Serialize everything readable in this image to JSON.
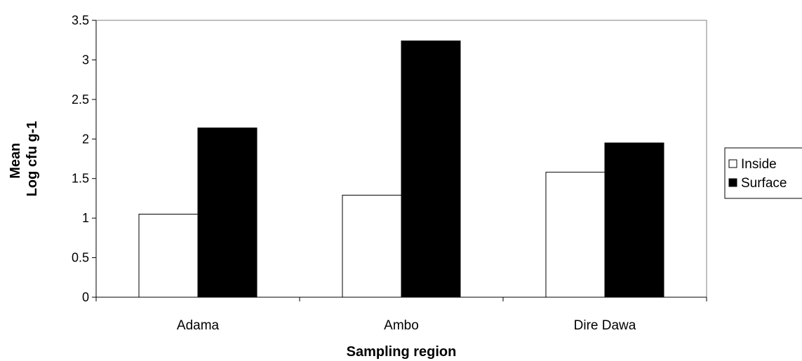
{
  "chart_data": {
    "type": "bar",
    "title": "",
    "xlabel": "Sampling region",
    "ylabel_lines": [
      "Mean",
      "Log cfu g-1"
    ],
    "categories": [
      "Adama",
      "Ambo",
      "Dire Dawa"
    ],
    "series": [
      {
        "name": "Inside",
        "values": [
          1.05,
          1.29,
          1.58
        ],
        "color": "#ffffff",
        "stroke": "#000000"
      },
      {
        "name": "Surface",
        "values": [
          2.14,
          3.24,
          1.95
        ],
        "color": "#000000",
        "stroke": "#000000"
      }
    ],
    "ylim": [
      0,
      3.5
    ],
    "yticks": [
      "0",
      "0.5",
      "1",
      "1.5",
      "2",
      "2.5",
      "3",
      "3.5"
    ],
    "grid": false,
    "plot_border": true,
    "legend_position": "right"
  }
}
